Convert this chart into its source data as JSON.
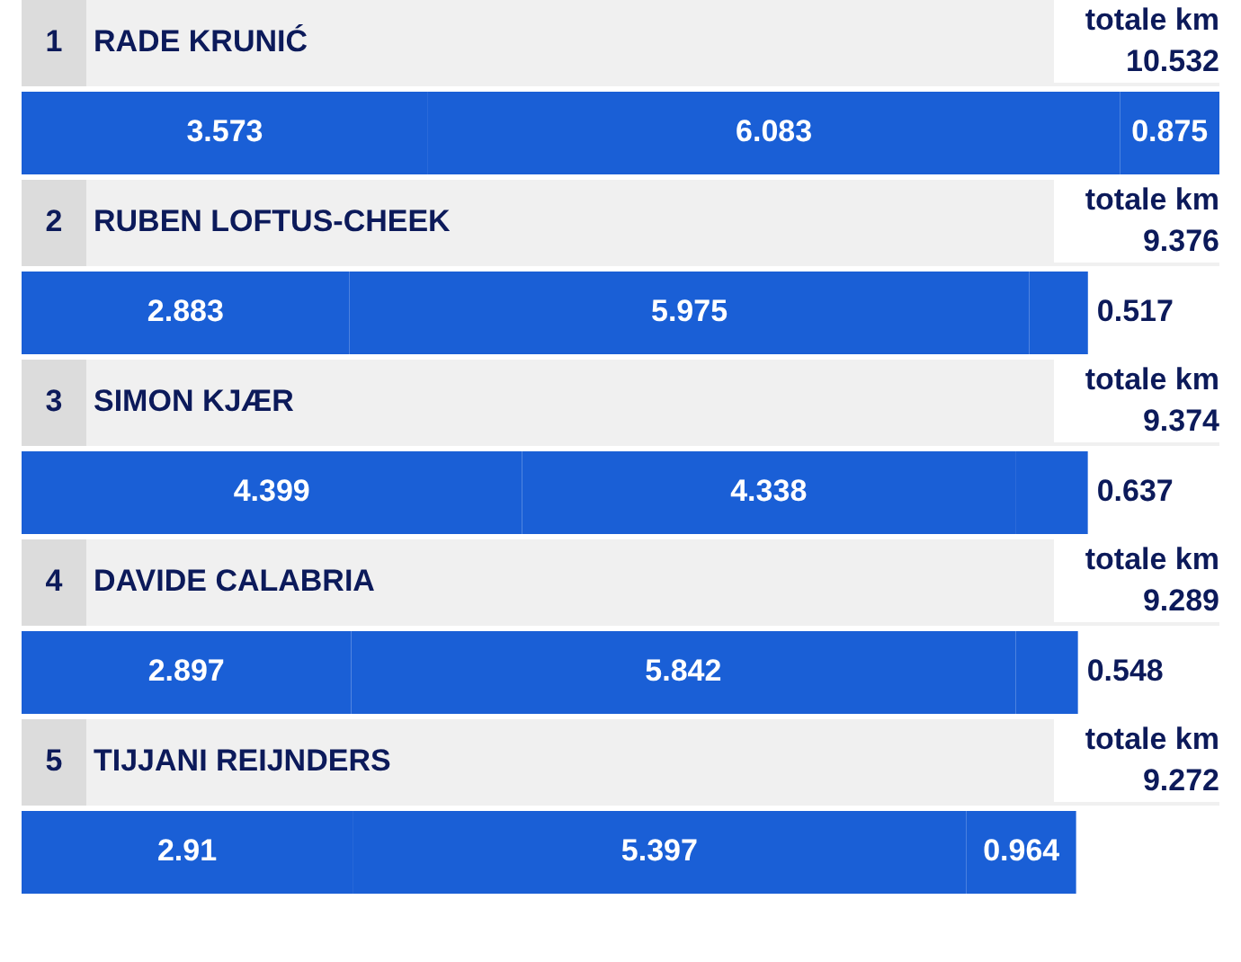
{
  "chart_data": {
    "type": "bar",
    "orientation": "horizontal",
    "stacked": true,
    "categories": [
      "RADE KRUNIĆ",
      "RUBEN LOFTUS-CHEEK",
      "SIMON KJÆR",
      "DAVIDE CALABRIA",
      "TIJJANI REIJNDERS"
    ],
    "annotations": [
      "1",
      "2",
      "3",
      "4",
      "5",
      "totale km",
      "10.532",
      "9.376",
      "9.374",
      "9.289",
      "9.272"
    ],
    "data_labels": true,
    "grid": false,
    "legend": false,
    "tick_labels": "y",
    "series": [
      {
        "color": "#1a5fd6",
        "values": [
          3.573,
          2.883,
          4.399,
          2.897,
          2.91
        ]
      },
      {
        "color": "#1a5fd6",
        "values": [
          6.083,
          5.975,
          4.338,
          5.842,
          5.397
        ]
      },
      {
        "color": "#1a5fd6",
        "values": [
          0.875,
          0.517,
          0.637,
          0.548,
          0.964
        ]
      }
    ]
  }
}
